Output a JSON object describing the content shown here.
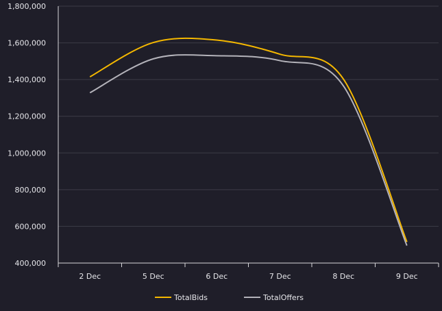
{
  "chart_data": {
    "type": "line",
    "title": "",
    "xlabel": "",
    "ylabel": "",
    "categories": [
      "2 Dec",
      "5 Dec",
      "6 Dec",
      "7 Dec",
      "8 Dec",
      "9 Dec"
    ],
    "ylim": [
      400000,
      1800000
    ],
    "yticks": [
      400000,
      600000,
      800000,
      1000000,
      1200000,
      1400000,
      1600000,
      1800000
    ],
    "ytick_labels": [
      "400,000",
      "600,000",
      "800,000",
      "1,000,000",
      "1,200,000",
      "1,400,000",
      "1,600,000",
      "1,800,000"
    ],
    "grid": true,
    "legend_position": "bottom",
    "series": [
      {
        "name": "TotalBids",
        "color": "#f5b800",
        "values": [
          1415000,
          1602000,
          1615000,
          1538000,
          1402000,
          515000
        ]
      },
      {
        "name": "TotalOffers",
        "color": "#b4b3ba",
        "values": [
          1328000,
          1513000,
          1530000,
          1503000,
          1365000,
          495000
        ]
      }
    ]
  }
}
